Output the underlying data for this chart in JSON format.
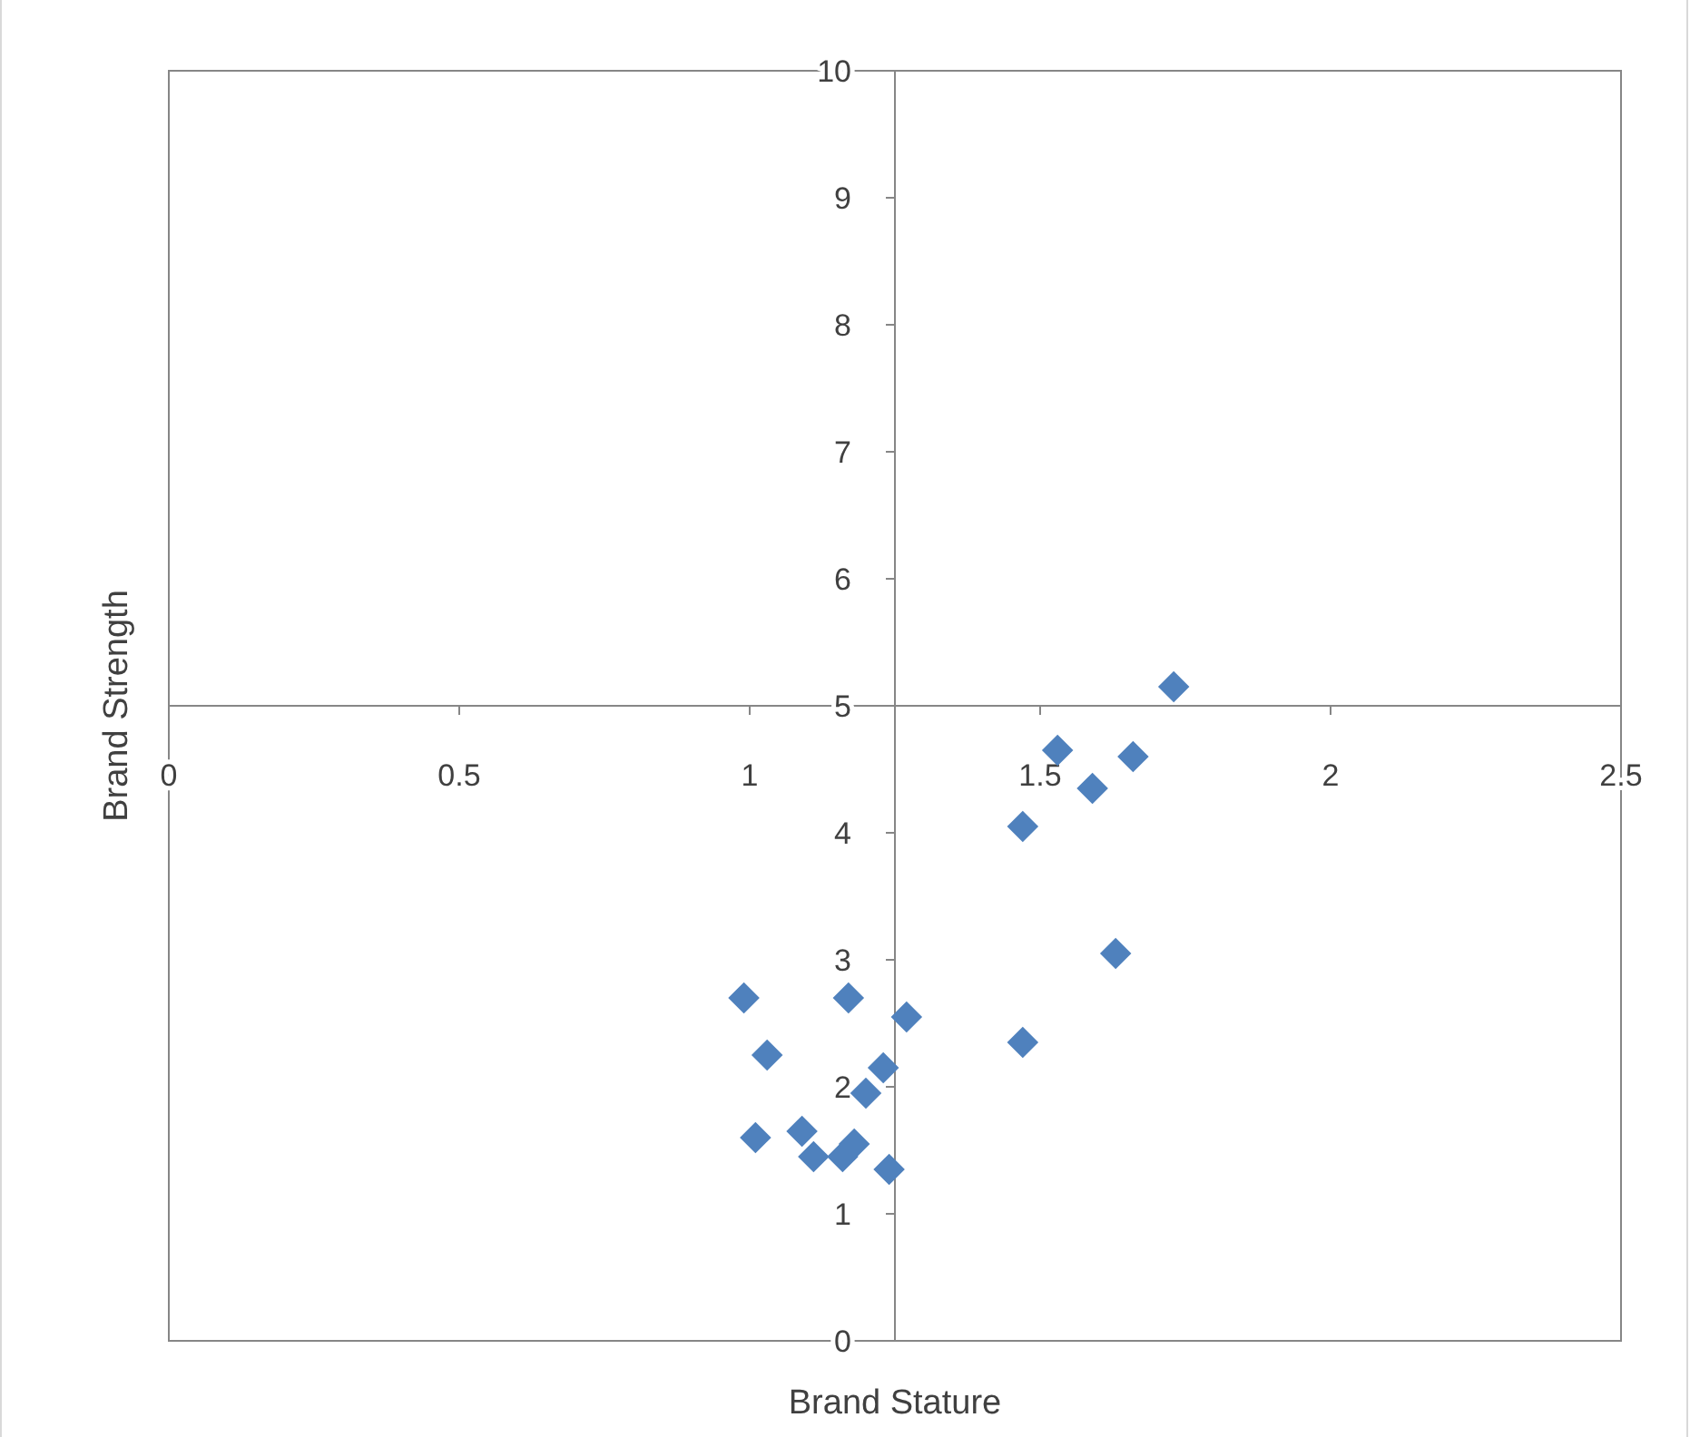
{
  "chart_data": {
    "type": "scatter",
    "xlabel": "Brand Stature",
    "ylabel": "Brand Strength",
    "xlim": [
      0,
      2.5
    ],
    "ylim": [
      0,
      10
    ],
    "xticks": [
      0,
      0.5,
      1,
      1.5,
      2,
      2.5
    ],
    "yticks": [
      0,
      1,
      2,
      3,
      4,
      5,
      6,
      7,
      8,
      9,
      10
    ],
    "marker": "diamond",
    "series": [
      {
        "color": "#4f81bd",
        "x": [
          0.99,
          1.17,
          1.27,
          1.03,
          1.23,
          1.2,
          1.01,
          1.09,
          1.11,
          1.16,
          1.18,
          1.24,
          1.47,
          1.47,
          1.53,
          1.59,
          1.66,
          1.63,
          1.73
        ],
        "values": [
          2.7,
          2.7,
          2.55,
          2.25,
          2.15,
          1.95,
          1.6,
          1.65,
          1.45,
          1.45,
          1.55,
          1.35,
          2.35,
          4.05,
          4.65,
          4.35,
          4.6,
          3.05,
          5.15
        ]
      }
    ]
  }
}
